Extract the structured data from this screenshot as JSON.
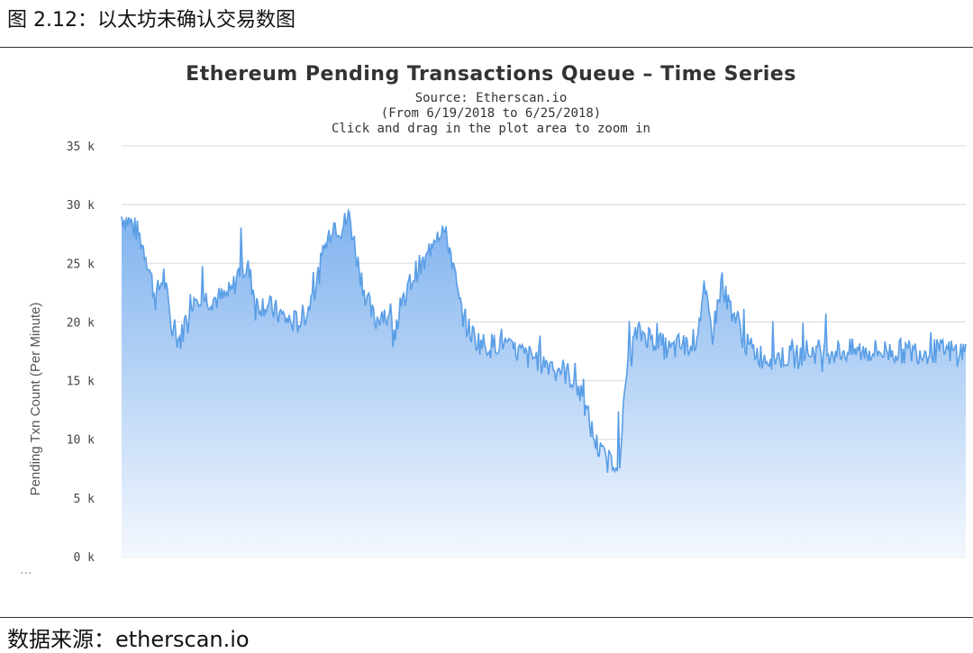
{
  "caption": "图 2.12：以太坊未确认交易数图",
  "source_note": "数据来源：etherscan.io",
  "ellipsis": "...",
  "chart_data": {
    "type": "area",
    "title": "Ethereum Pending Transactions Queue – Time Series",
    "subtitle_lines": [
      "Source: Etherscan.io",
      "(From 6/19/2018 to 6/25/2018)",
      "Click and drag in the plot area to zoom in"
    ],
    "ylabel": "Pending Txn Count (Per Minute)",
    "ylim": [
      0,
      35000
    ],
    "y_ticks": [
      {
        "value": 0,
        "label": "0 k"
      },
      {
        "value": 5000,
        "label": "5 k"
      },
      {
        "value": 10000,
        "label": "10 k"
      },
      {
        "value": 15000,
        "label": "15 k"
      },
      {
        "value": 20000,
        "label": "20 k"
      },
      {
        "value": 25000,
        "label": "25 k"
      },
      {
        "value": 30000,
        "label": "30 k"
      },
      {
        "value": 35000,
        "label": "35 k"
      }
    ],
    "x_range": [
      "6/19/2018",
      "6/25/2018"
    ],
    "grid": true,
    "line_color": "#5a9ee6",
    "fill_top_color": "#7fb2ee",
    "fill_bottom_color": "#f4f8fe",
    "series": [
      {
        "x": [
          0,
          0.01,
          0.02,
          0.03,
          0.04,
          0.05,
          0.06,
          0.07,
          0.08,
          0.09,
          0.1,
          0.11,
          0.12,
          0.13,
          0.14,
          0.15,
          0.16,
          0.17,
          0.18,
          0.19,
          0.2,
          0.21,
          0.22,
          0.23,
          0.24,
          0.25,
          0.26,
          0.27,
          0.28,
          0.29,
          0.3,
          0.31,
          0.32,
          0.33,
          0.34,
          0.35,
          0.36,
          0.37,
          0.38,
          0.39,
          0.4,
          0.41,
          0.42,
          0.43,
          0.44,
          0.45,
          0.46,
          0.47,
          0.48,
          0.49,
          0.5,
          0.51,
          0.52,
          0.53,
          0.54,
          0.55,
          0.56,
          0.57,
          0.58,
          0.59,
          0.6,
          0.61,
          0.62,
          0.63,
          0.64,
          0.65,
          0.66,
          0.67,
          0.68,
          0.69,
          0.7,
          0.71,
          0.72,
          0.73,
          0.74,
          0.75,
          0.76,
          0.77,
          0.78,
          0.79,
          0.8,
          0.81,
          0.82,
          0.83,
          0.84,
          0.85,
          0.86,
          0.87,
          0.88,
          0.89,
          0.9,
          0.91,
          0.92,
          0.93,
          0.94,
          0.95,
          0.96,
          0.97,
          0.98,
          0.99,
          1.0
        ],
        "values": [
          29000,
          28500,
          27500,
          25500,
          22000,
          24000,
          19000,
          18500,
          21500,
          22500,
          22000,
          22000,
          22000,
          22500,
          24500,
          24500,
          21500,
          21500,
          21000,
          20500,
          20000,
          20000,
          21000,
          23000,
          26000,
          28500,
          28000,
          29000,
          25000,
          22000,
          20000,
          21000,
          19500,
          20500,
          23000,
          24500,
          25000,
          27500,
          28000,
          26000,
          21500,
          19500,
          18500,
          18000,
          18000,
          18500,
          17500,
          17500,
          17000,
          17000,
          16500,
          16500,
          16000,
          15500,
          14500,
          12500,
          10000,
          8500,
          8000,
          8500,
          17000,
          19000,
          19000,
          18500,
          18000,
          17500,
          18000,
          18000,
          18500,
          22500,
          19000,
          23000,
          21500,
          20000,
          18000,
          17500,
          17000,
          17000,
          17000,
          17000,
          17000,
          17500,
          17500,
          17500,
          17500,
          17500,
          17500,
          17500,
          17500,
          17500,
          17500,
          17500,
          17500,
          17500,
          17500,
          17500,
          17500,
          17500,
          17500,
          17500,
          17500
        ]
      }
    ]
  }
}
